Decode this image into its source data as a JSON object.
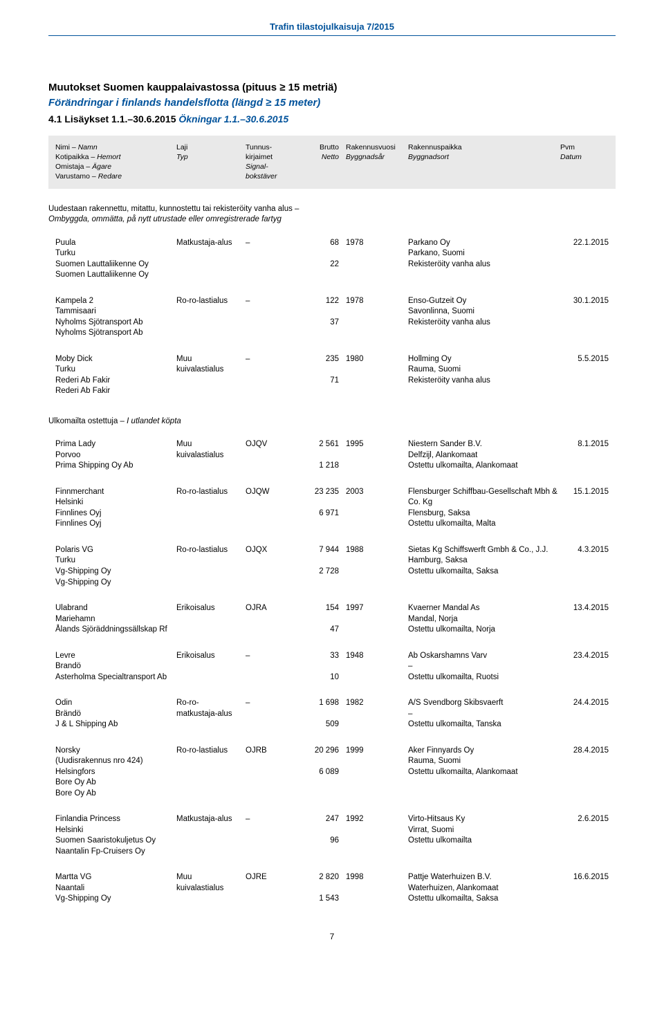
{
  "header": {
    "publication": "Trafin tilastojulkaisuja 7/2015",
    "title_fi": "Muutokset Suomen kauppalaivastossa (pituus ≥ 15 metriä)",
    "title_sv": "Förändringar i finlands handelsflotta (längd ≥ 15 meter)",
    "section_fi": "4.1 Lisäykset 1.1.–30.6.2015",
    "section_sv": "Ökningar 1.1.–30.6.2015"
  },
  "col_headers": {
    "name_fi": "Nimi",
    "name_sv": "Namn",
    "port_fi": "Kotipaikka",
    "port_sv": "Hemort",
    "owner_fi": "Omistaja",
    "owner_sv": "Ägare",
    "shipowner_fi": "Varustamo",
    "shipowner_sv": "Redare",
    "type_fi": "Laji",
    "type_sv": "Typ",
    "signal_fi": "Tunnus-kirjaimet",
    "signal_sv": "Signal-bokstäver",
    "gross_fi": "Brutto",
    "net_fi": "Netto",
    "net_sv": "Netto",
    "year_fi": "Rakennusvuosi",
    "year_sv": "Byggnadsår",
    "place_fi": "Rakennuspaikka",
    "place_sv": "Byggnadsort",
    "date_fi": "Pvm",
    "date_sv": "Datum"
  },
  "section_note": {
    "fi": "Uudestaan rakennettu, mitattu, kunnostettu tai rekisteröity vanha alus –",
    "sv": "Ombyggda, ommätta, på nytt utrustade eller omregistrerade fartyg"
  },
  "section_heading_abroad": {
    "fi": "Ulkomailta ostettuja",
    "sv": "I utlandet köpta"
  },
  "entries_a": [
    {
      "name": "Puula",
      "port": "Turku",
      "owner": "Suomen Lauttaliikenne Oy",
      "shipowner": "Suomen Lauttaliikenne Oy",
      "type": "Matkustaja-alus",
      "type2": "",
      "signal": "–",
      "gross": "68",
      "net": "22",
      "year": "1978",
      "yard": "Parkano Oy",
      "yard_loc": "Parkano, Suomi",
      "status": "Rekisteröity vanha alus",
      "date": "22.1.2015"
    },
    {
      "name": "Kampela 2",
      "port": "Tammisaari",
      "owner": "Nyholms Sjötransport Ab",
      "shipowner": "Nyholms Sjötransport Ab",
      "type": "Ro-ro-lastialus",
      "type2": "",
      "signal": "–",
      "gross": "122",
      "net": "37",
      "year": "1978",
      "yard": "Enso-Gutzeit Oy",
      "yard_loc": "Savonlinna, Suomi",
      "status": "Rekisteröity vanha alus",
      "date": "30.1.2015"
    },
    {
      "name": "Moby Dick",
      "port": "Turku",
      "owner": "Rederi Ab Fakir",
      "shipowner": "Rederi Ab Fakir",
      "type": "Muu",
      "type2": "kuivalastialus",
      "signal": "–",
      "gross": "235",
      "net": "71",
      "year": "1980",
      "yard": "Hollming Oy",
      "yard_loc": "Rauma, Suomi",
      "status": "Rekisteröity vanha alus",
      "date": "5.5.2015"
    }
  ],
  "entries_b": [
    {
      "name": "Prima Lady",
      "port": "Porvoo",
      "owner": "Prima Shipping Oy Ab",
      "shipowner": "",
      "type": "Muu",
      "type2": "kuivalastialus",
      "signal": "OJQV",
      "gross": "2 561",
      "net": "1 218",
      "year": "1995",
      "yard": "Niestern Sander B.V.",
      "yard_loc": "Delfzijl, Alankomaat",
      "status": "Ostettu ulkomailta, Alankomaat",
      "date": "8.1.2015"
    },
    {
      "name": "Finnmerchant",
      "port": "Helsinki",
      "owner": "Finnlines Oyj",
      "shipowner": "Finnlines Oyj",
      "type": "Ro-ro-lastialus",
      "type2": "",
      "signal": "OJQW",
      "gross": "23 235",
      "net": "6 971",
      "year": "2003",
      "yard": "Flensburger Schiffbau-Gesellschaft Mbh & Co. Kg",
      "yard_loc": "Flensburg, Saksa",
      "status": "Ostettu ulkomailta, Malta",
      "date": "15.1.2015"
    },
    {
      "name": "Polaris VG",
      "port": "Turku",
      "owner": "Vg-Shipping Oy",
      "shipowner": "Vg-Shipping Oy",
      "type": "Ro-ro-lastialus",
      "type2": "",
      "signal": "OJQX",
      "gross": "7 944",
      "net": "2 728",
      "year": "1988",
      "yard": "Sietas Kg Schiffswerft Gmbh & Co., J.J.",
      "yard_loc": "Hamburg, Saksa",
      "status": "Ostettu ulkomailta, Saksa",
      "date": "4.3.2015"
    },
    {
      "name": "Ulabrand",
      "port": "Mariehamn",
      "owner": "Ålands Sjöräddningssällskap Rf",
      "shipowner": "",
      "type": "Erikoisalus",
      "type2": "",
      "signal": "OJRA",
      "gross": "154",
      "net": "47",
      "year": "1997",
      "yard": "Kvaerner Mandal As",
      "yard_loc": "Mandal, Norja",
      "status": "Ostettu ulkomailta, Norja",
      "date": "13.4.2015"
    },
    {
      "name": "Levre",
      "port": "Brandö",
      "owner": "Asterholma Specialtransport Ab",
      "shipowner": "",
      "type": "Erikoisalus",
      "type2": "",
      "signal": "–",
      "gross": "33",
      "net": "10",
      "year": "1948",
      "yard": "Ab Oskarshamns Varv",
      "yard_loc": "–",
      "status": "Ostettu ulkomailta, Ruotsi",
      "date": "23.4.2015"
    },
    {
      "name": "Odin",
      "port": "Brändö",
      "owner": "J & L Shipping Ab",
      "shipowner": "",
      "type": "Ro-ro-",
      "type2": "matkustaja-alus",
      "signal": "–",
      "gross": "1 698",
      "net": "509",
      "year": "1982",
      "yard": "A/S Svendborg Skibsvaerft",
      "yard_loc": "–",
      "status": "Ostettu ulkomailta, Tanska",
      "date": "24.4.2015"
    },
    {
      "name": "Norsky",
      "port": "(Uudisrakennus nro 424)",
      "owner": "Helsingfors",
      "shipowner": "Bore Oy Ab",
      "shipowner2": "Bore Oy Ab",
      "type": "Ro-ro-lastialus",
      "type2": "",
      "signal": "OJRB",
      "gross": "20 296",
      "net": "6 089",
      "year": "1999",
      "yard": "Aker Finnyards Oy",
      "yard_loc": "Rauma, Suomi",
      "status": "Ostettu ulkomailta, Alankomaat",
      "date": "28.4.2015"
    },
    {
      "name": "Finlandia Princess",
      "port": "Helsinki",
      "owner": "Suomen Saaristokuljetus Oy",
      "shipowner": "Naantalin Fp-Cruisers Oy",
      "type": "Matkustaja-alus",
      "type2": "",
      "signal": "–",
      "gross": "247",
      "net": "96",
      "year": "1992",
      "yard": "Virto-Hitsaus Ky",
      "yard_loc": "Virrat, Suomi",
      "status": "Ostettu ulkomailta",
      "date": "2.6.2015"
    },
    {
      "name": "Martta VG",
      "port": "",
      "owner": "Naantali",
      "shipowner": "Vg-Shipping Oy",
      "type": "Muu",
      "type2": "kuivalastialus",
      "signal": "OJRE",
      "gross": "2 820",
      "net": "1 543",
      "year": "1998",
      "yard": "Pattje Waterhuizen B.V.",
      "yard_loc": "Waterhuizen, Alankomaat",
      "status": "Ostettu ulkomailta, Saksa",
      "date": "16.6.2015"
    }
  ],
  "page_number": "7"
}
